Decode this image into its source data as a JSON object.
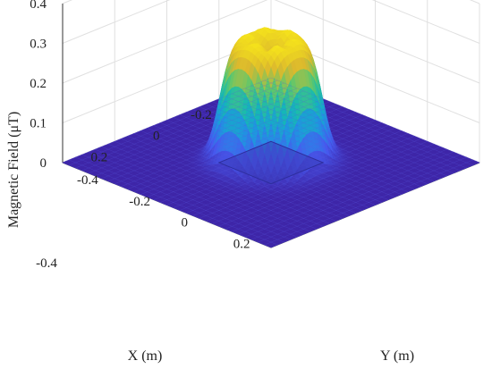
{
  "chart_data": {
    "type": "surface",
    "projection": "3d",
    "xlabel": "X (m)",
    "ylabel": "Y (m)",
    "zlabel": "Magnetic Field (μT)",
    "xlim": [
      -0.4,
      0.4
    ],
    "ylim": [
      -0.4,
      0.4
    ],
    "zlim": [
      0,
      0.4
    ],
    "x_ticks": [
      {
        "value": -0.2,
        "label": "-0.2"
      },
      {
        "value": 0,
        "label": "0"
      },
      {
        "value": 0.2,
        "label": "0.2"
      }
    ],
    "y_ticks": [
      {
        "value": -0.4,
        "label": "-0.4"
      },
      {
        "value": -0.2,
        "label": "-0.2"
      },
      {
        "value": 0,
        "label": "0"
      },
      {
        "value": 0.2,
        "label": "0.2"
      }
    ],
    "z_ticks": [
      {
        "value": 0,
        "label": "0"
      },
      {
        "value": 0.1,
        "label": "0.1"
      },
      {
        "value": 0.2,
        "label": "0.2"
      },
      {
        "value": 0.3,
        "label": "0.3"
      },
      {
        "value": 0.4,
        "label": "0.4"
      }
    ],
    "corner_label": "-0.4",
    "grid": true,
    "colormap": "parula",
    "surface_profile": {
      "peak_center_radius_m": 0.05,
      "peak_ring_value": 0.32,
      "center_value": 0.28,
      "falloff_width_m": 0.085
    },
    "source_region": {
      "x": [
        -0.1,
        0.1
      ],
      "y": [
        -0.1,
        0.1
      ],
      "color": "#3a3ab8"
    }
  }
}
